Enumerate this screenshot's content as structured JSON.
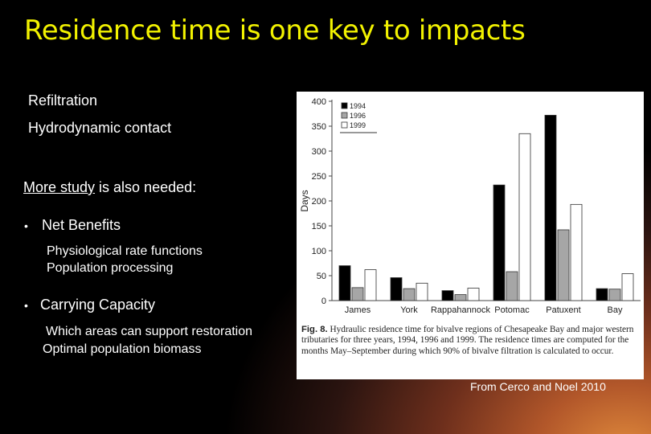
{
  "slide": {
    "title": "Residence time is one key to impacts",
    "line1": "Refiltration",
    "line2": "Hydrodynamic contact",
    "more_study_u": "More study",
    "more_study_rest": " is also needed:",
    "bullet1": "Net Benefits",
    "bullet1_sub1": "Physiological rate functions",
    "bullet1_sub2": "Population processing",
    "bullet2": "Carrying Capacity",
    "bullet2_sub1": "Which areas can support restoration",
    "bullet2_sub2": "Optimal population biomass",
    "source": "From Cerco and Noel 2010",
    "bullet_glyph": "•"
  },
  "caption": {
    "label": "Fig. 8.",
    "text": " Hydraulic residence time for bivalve regions of Chesapeake Bay and major western tributaries for three years, 1994, 1996 and 1999. The residence times are computed for the months May–September during which 90% of bivalve filtration is calculated to occur."
  },
  "chart_data": {
    "type": "bar",
    "ylabel": "Days",
    "xlabel": "",
    "ylim": [
      0,
      400
    ],
    "yticks": [
      0,
      50,
      100,
      150,
      200,
      250,
      300,
      350,
      400
    ],
    "categories": [
      "James",
      "York",
      "Rappahannock",
      "Potomac",
      "Patuxent",
      "Bay"
    ],
    "series": [
      {
        "name": "1994",
        "color": "#000000",
        "values": [
          70,
          46,
          20,
          232,
          372,
          24
        ]
      },
      {
        "name": "1996",
        "color": "#a6a6a6",
        "values": [
          26,
          24,
          12,
          58,
          142,
          23
        ]
      },
      {
        "name": "1999",
        "color": "#ffffff",
        "values": [
          62,
          35,
          25,
          335,
          193,
          54
        ]
      }
    ],
    "legend": "top-left",
    "grid": false
  }
}
